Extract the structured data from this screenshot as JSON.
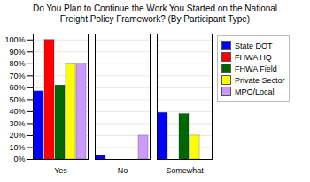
{
  "chart_data": {
    "type": "bar",
    "title": "Do You Plan to Continue the Work You Started on the National\nFreight Policy Framework? (By Participant Type)",
    "categories": [
      "Yes",
      "No",
      "Somewhat"
    ],
    "series": [
      {
        "name": "State DOT",
        "color": "#0000ff",
        "values": [
          57,
          3,
          39
        ]
      },
      {
        "name": "FHWA HQ",
        "color": "#ff0000",
        "values": [
          100,
          0,
          0
        ]
      },
      {
        "name": "FHWA Field",
        "color": "#006600",
        "values": [
          62,
          0,
          38
        ]
      },
      {
        "name": "Private Sector",
        "color": "#ffff00",
        "values": [
          80,
          0,
          20
        ]
      },
      {
        "name": "MPO/Local",
        "color": "#cc99ff",
        "values": [
          80,
          20,
          0
        ]
      }
    ],
    "ylim": [
      0,
      105
    ],
    "yticks": [
      {
        "value": 0,
        "label": "0%"
      },
      {
        "value": 10,
        "label": "10%"
      },
      {
        "value": 20,
        "label": "20%"
      },
      {
        "value": 30,
        "label": "30%"
      },
      {
        "value": 40,
        "label": "40%"
      },
      {
        "value": 50,
        "label": "50%"
      },
      {
        "value": 60,
        "label": "60%"
      },
      {
        "value": 70,
        "label": "70%"
      },
      {
        "value": 80,
        "label": "80%"
      },
      {
        "value": 90,
        "label": "90%"
      },
      {
        "value": 100,
        "label": "100%"
      }
    ],
    "grid": true,
    "legend": "right"
  }
}
